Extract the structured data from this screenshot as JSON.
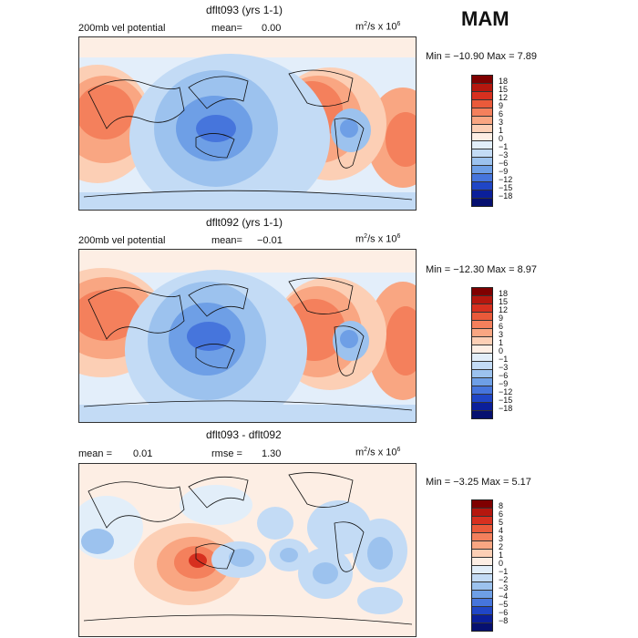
{
  "season": "MAM",
  "units": {
    "base": "m",
    "sup1": "2",
    "mid": "/s x 10",
    "sup2": "6"
  },
  "panels": [
    {
      "title": "dflt093 (yrs 1-1)",
      "left_text": "200mb vel potential",
      "stat1_label": "mean=",
      "stat1_value": "0.00",
      "minmax": "Min = −10.90 Max =   7.89",
      "levels": [
        "18",
        "15",
        "12",
        "9",
        "6",
        "3",
        "1",
        "0",
        "−1",
        "−3",
        "−6",
        "−9",
        "−12",
        "−15",
        "−18"
      ]
    },
    {
      "title": "dflt092 (yrs 1-1)",
      "left_text": "200mb vel potential",
      "stat1_label": "mean=",
      "stat1_value": "−0.01",
      "minmax": "Min = −12.30 Max =   8.97",
      "levels": [
        "18",
        "15",
        "12",
        "9",
        "6",
        "3",
        "1",
        "0",
        "−1",
        "−3",
        "−6",
        "−9",
        "−12",
        "−15",
        "−18"
      ]
    },
    {
      "title": "dflt093 - dflt092",
      "mean_label": "mean =",
      "mean_value": "0.01",
      "rmse_label": "rmse =",
      "rmse_value": "1.30",
      "minmax": "Min = −3.25 Max =   5.17",
      "levels": [
        "8",
        "6",
        "5",
        "4",
        "3",
        "2",
        "1",
        "0",
        "−1",
        "−2",
        "−3",
        "−4",
        "−5",
        "−6",
        "−8"
      ]
    }
  ],
  "colors": {
    "colorbar": [
      "#7f0000",
      "#b5170e",
      "#d7301f",
      "#ea5a3a",
      "#f4805c",
      "#f9a682",
      "#fccfb5",
      "#fdeee4",
      "#e2eef9",
      "#c3dbf5",
      "#9cc2ee",
      "#6e9fe6",
      "#4675dc",
      "#2046c6",
      "#0b1f9a",
      "#061070"
    ]
  }
}
